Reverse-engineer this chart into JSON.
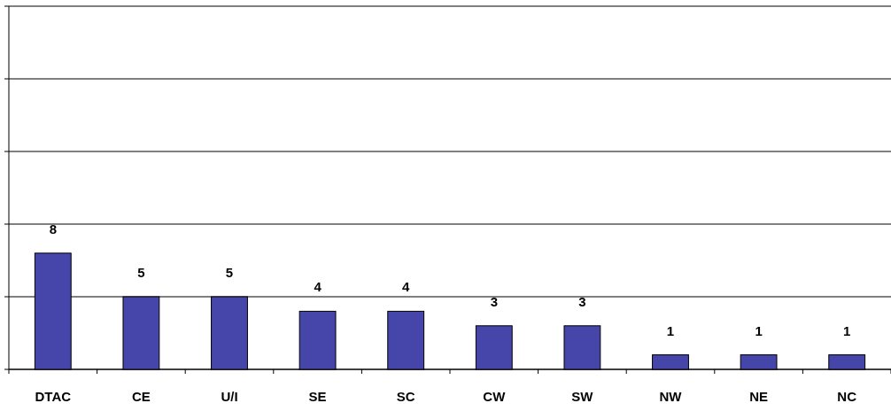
{
  "chart_data": {
    "type": "bar",
    "categories": [
      "DTAC",
      "CE",
      "U/I",
      "SE",
      "SC",
      "CW",
      "SW",
      "NW",
      "NE",
      "NC"
    ],
    "values": [
      8,
      5,
      5,
      4,
      4,
      3,
      3,
      1,
      1,
      1
    ],
    "color": "#4646aa",
    "data_labels": true,
    "ylim": [
      0,
      25
    ],
    "yticks": [
      {
        "value": 0,
        "label": null
      },
      {
        "value": 5,
        "label": null
      },
      {
        "value": 10,
        "label": null
      },
      {
        "value": 15,
        "label": null
      },
      {
        "value": 20,
        "label": null
      },
      {
        "value": 25,
        "label": null
      }
    ],
    "grid": "y",
    "tick_labels": "x"
  }
}
